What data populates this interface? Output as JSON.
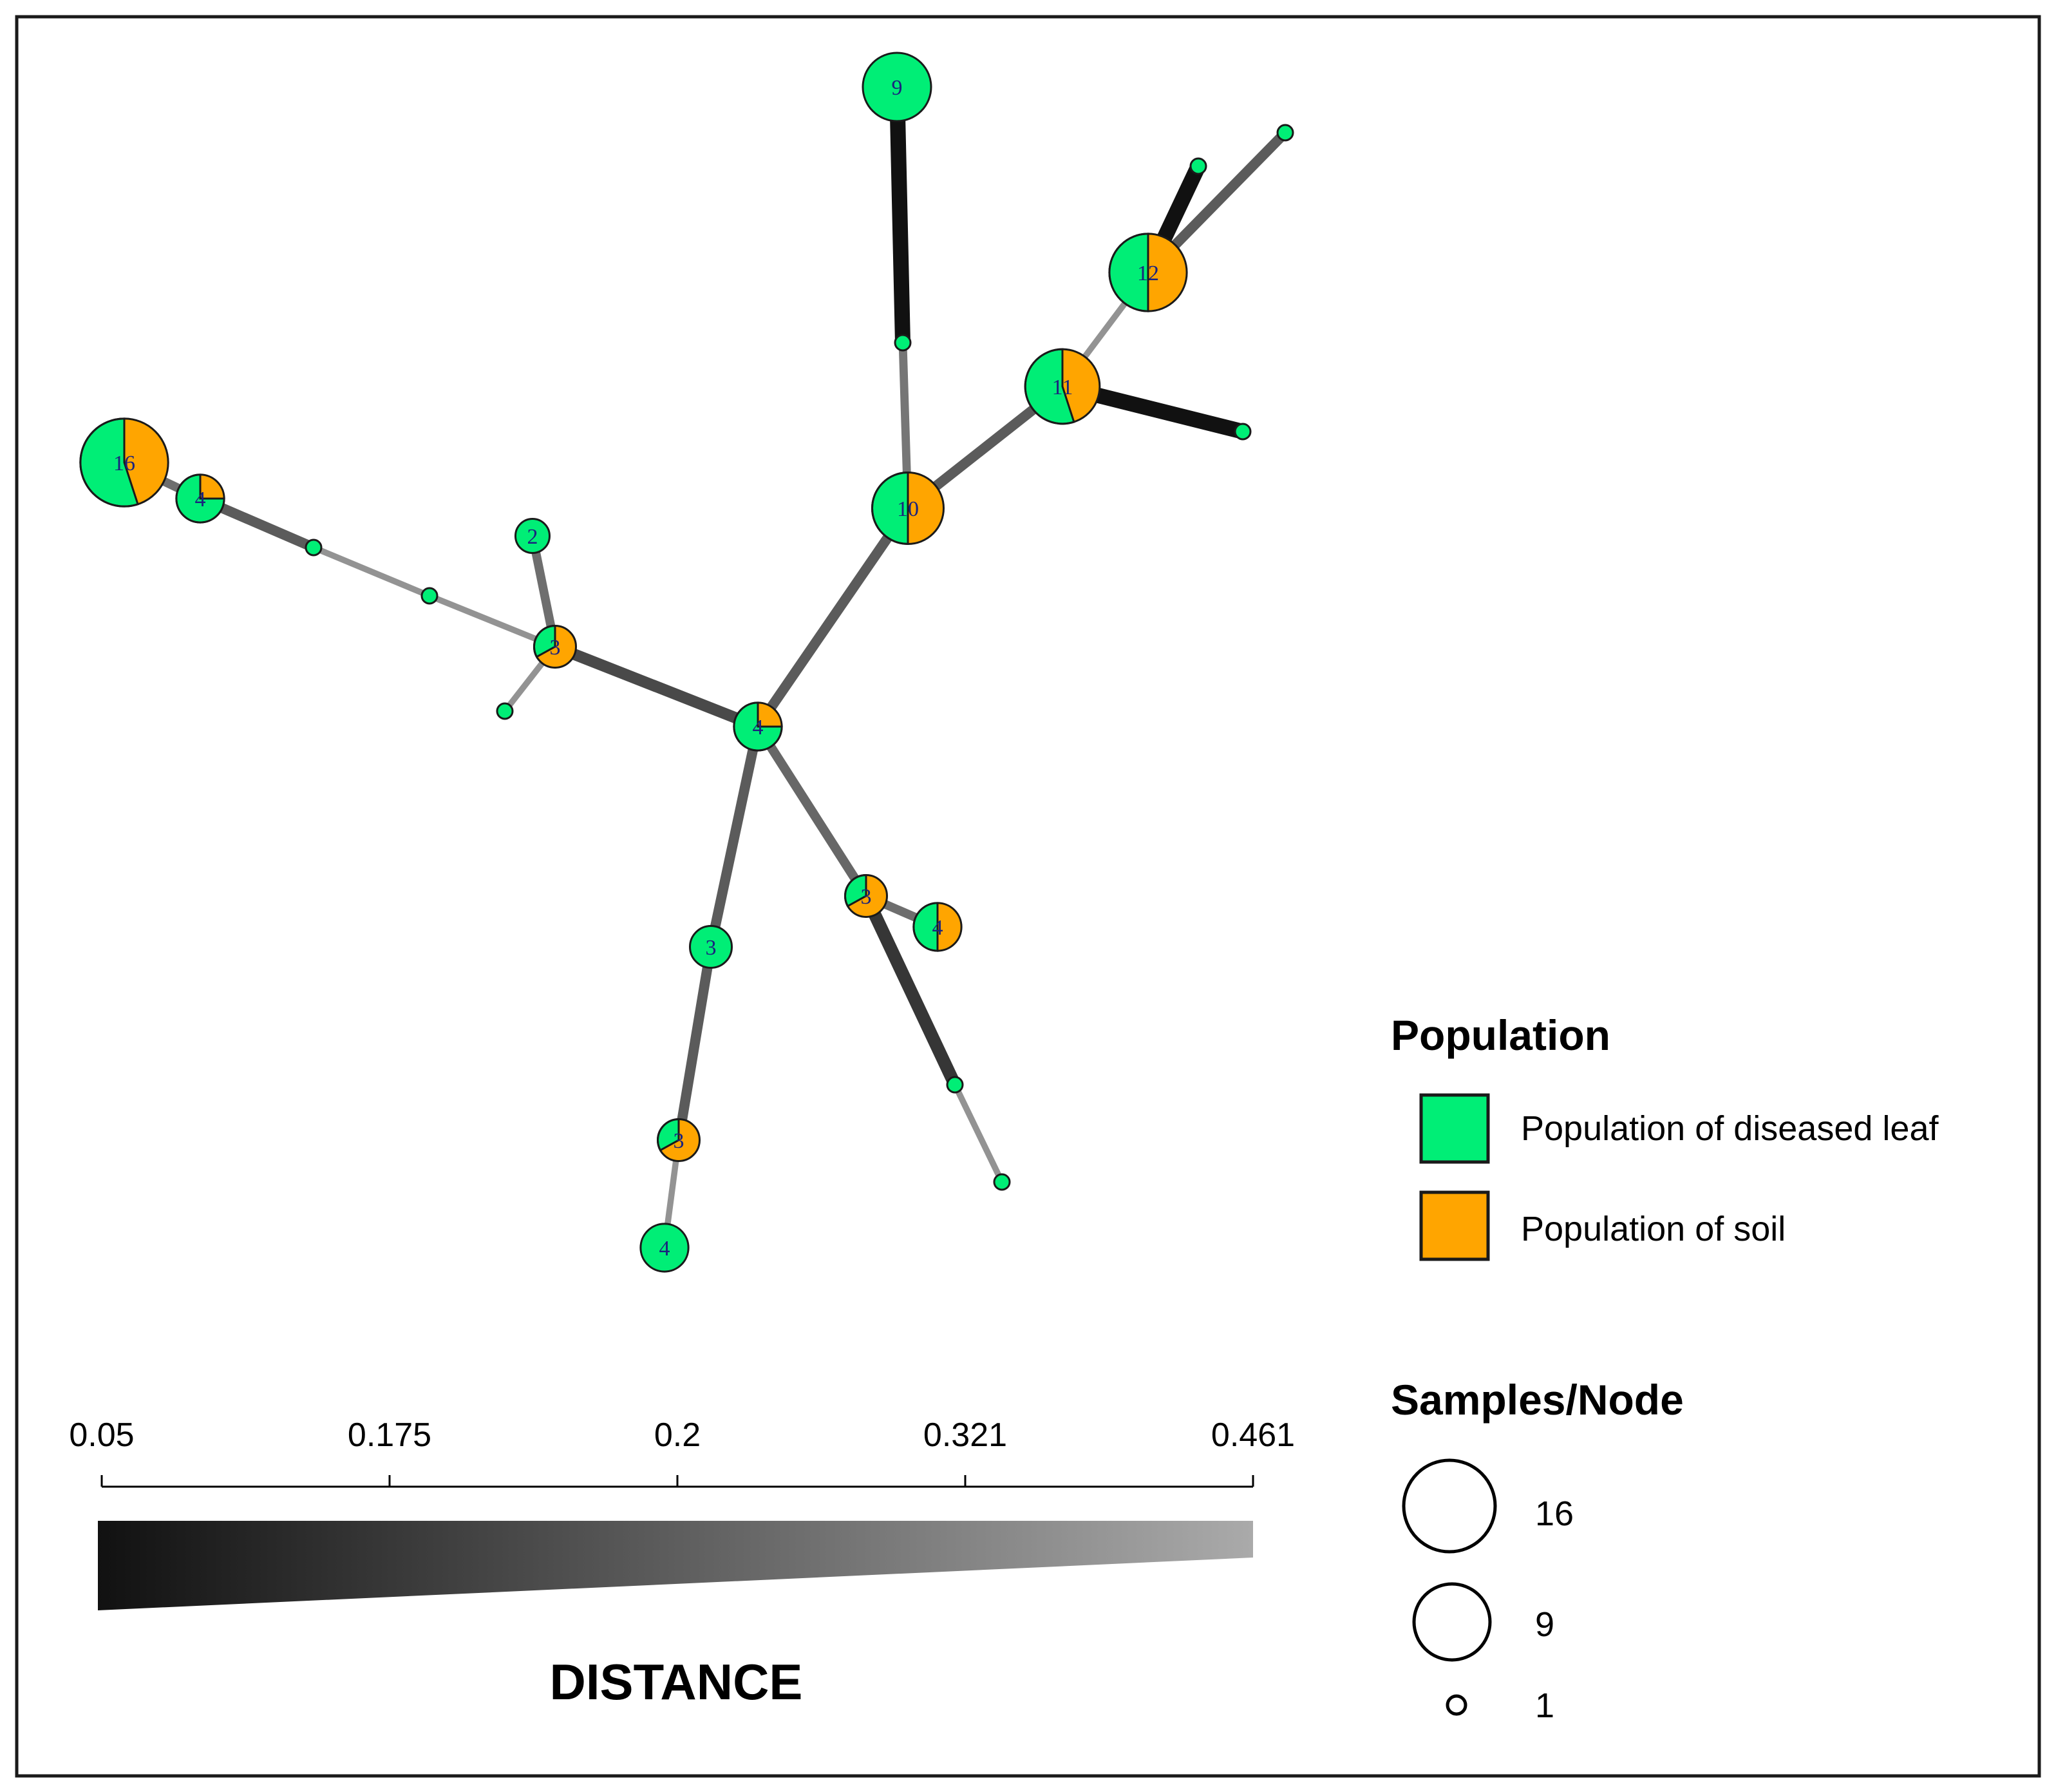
{
  "colors": {
    "diseased_leaf": "#00ee76",
    "soil": "#ffa500",
    "outline": "#1a1a1a",
    "frame": "#1a1a1a"
  },
  "network": {
    "nodes": [
      {
        "id": "n9",
        "label": "9",
        "samples": 9,
        "leaf_fraction": 1.0
      },
      {
        "id": "n12",
        "label": "12",
        "samples": 12,
        "leaf_fraction": 0.5
      },
      {
        "id": "n11",
        "label": "11",
        "samples": 11,
        "leaf_fraction": 0.55
      },
      {
        "id": "n10",
        "label": "10",
        "samples": 10,
        "leaf_fraction": 0.5
      },
      {
        "id": "n16",
        "label": "16",
        "samples": 16,
        "leaf_fraction": 0.55
      },
      {
        "id": "n4a",
        "label": "4",
        "samples": 4,
        "leaf_fraction": 0.75
      },
      {
        "id": "n2",
        "label": "2",
        "samples": 2,
        "leaf_fraction": 1.0
      },
      {
        "id": "n3a",
        "label": "3",
        "samples": 3,
        "leaf_fraction": 0.33
      },
      {
        "id": "n4b",
        "label": "4",
        "samples": 4,
        "leaf_fraction": 0.75
      },
      {
        "id": "n3b",
        "label": "3",
        "samples": 3,
        "leaf_fraction": 1.0
      },
      {
        "id": "n3c",
        "label": "3",
        "samples": 3,
        "leaf_fraction": 0.33
      },
      {
        "id": "n4c",
        "label": "4",
        "samples": 4,
        "leaf_fraction": 0.5
      },
      {
        "id": "n3d",
        "label": "3",
        "samples": 3,
        "leaf_fraction": 0.33
      },
      {
        "id": "n4d",
        "label": "4",
        "samples": 4,
        "leaf_fraction": 1.0
      },
      {
        "id": "s1",
        "label": "",
        "samples": 1,
        "leaf_fraction": 1.0
      },
      {
        "id": "s2",
        "label": "",
        "samples": 1,
        "leaf_fraction": 1.0
      },
      {
        "id": "s3",
        "label": "",
        "samples": 1,
        "leaf_fraction": 1.0
      },
      {
        "id": "s4",
        "label": "",
        "samples": 1,
        "leaf_fraction": 1.0
      },
      {
        "id": "s5",
        "label": "",
        "samples": 1,
        "leaf_fraction": 1.0
      },
      {
        "id": "s6",
        "label": "",
        "samples": 1,
        "leaf_fraction": 1.0
      },
      {
        "id": "s7",
        "label": "",
        "samples": 1,
        "leaf_fraction": 1.0
      },
      {
        "id": "s8",
        "label": "",
        "samples": 1,
        "leaf_fraction": 1.0
      },
      {
        "id": "s9",
        "label": "",
        "samples": 1,
        "leaf_fraction": 1.0
      }
    ],
    "edges": [
      {
        "from": "n9",
        "to": "s1",
        "distance": 0.05
      },
      {
        "from": "s1",
        "to": "n10",
        "distance": 0.321
      },
      {
        "from": "n10",
        "to": "n11",
        "distance": 0.25
      },
      {
        "from": "n11",
        "to": "n12",
        "distance": 0.4
      },
      {
        "from": "n12",
        "to": "s2",
        "distance": 0.25
      },
      {
        "from": "n12",
        "to": "s3",
        "distance": 0.05
      },
      {
        "from": "n11",
        "to": "s4",
        "distance": 0.05
      },
      {
        "from": "n10",
        "to": "n4b",
        "distance": 0.25
      },
      {
        "from": "n4b",
        "to": "n3a",
        "distance": 0.2
      },
      {
        "from": "n3a",
        "to": "n2",
        "distance": 0.3
      },
      {
        "from": "n3a",
        "to": "s5",
        "distance": 0.4
      },
      {
        "from": "n3a",
        "to": "s6",
        "distance": 0.4
      },
      {
        "from": "s6",
        "to": "s7",
        "distance": 0.4
      },
      {
        "from": "s7",
        "to": "n4a",
        "distance": 0.25
      },
      {
        "from": "n4a",
        "to": "n16",
        "distance": 0.3
      },
      {
        "from": "n4b",
        "to": "n3b",
        "distance": 0.25
      },
      {
        "from": "n3b",
        "to": "n3d",
        "distance": 0.25
      },
      {
        "from": "n3d",
        "to": "n4d",
        "distance": 0.4
      },
      {
        "from": "n4b",
        "to": "n3c",
        "distance": 0.28
      },
      {
        "from": "n3c",
        "to": "n4c",
        "distance": 0.3
      },
      {
        "from": "n3c",
        "to": "s8",
        "distance": 0.15
      },
      {
        "from": "s8",
        "to": "s9",
        "distance": 0.4
      }
    ]
  },
  "distance_scale": {
    "ticks": [
      "0.05",
      "0.175",
      "0.2",
      "0.321",
      "0.461"
    ],
    "title": "DISTANCE"
  },
  "legend": {
    "population_title": "Population",
    "population_items": [
      {
        "label": "Population of diseased leaf",
        "color_key": "diseased_leaf"
      },
      {
        "label": "Population of soil",
        "color_key": "soil"
      }
    ],
    "size_title": "Samples/Node",
    "size_items": [
      {
        "label": "16",
        "samples": 16
      },
      {
        "label": "9",
        "samples": 9
      },
      {
        "label": "1",
        "samples": 1
      }
    ]
  }
}
